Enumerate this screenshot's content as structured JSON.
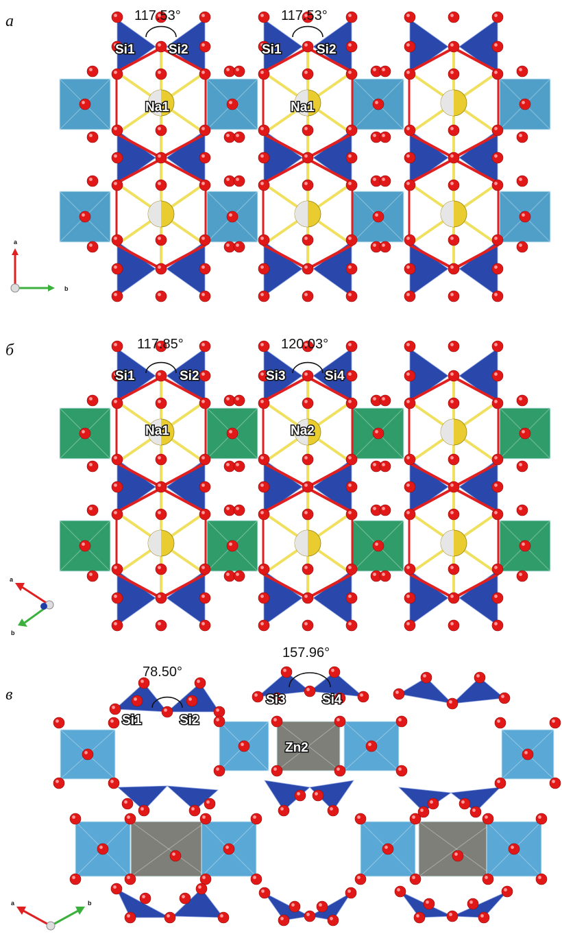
{
  "panels": [
    {
      "id": "a",
      "label": "а",
      "octa_color": "#4f9fc9",
      "has_na": true,
      "angles": [
        {
          "text": "117.53°",
          "left": "Si1",
          "right": "Si2",
          "center": "Na1"
        },
        {
          "text": "117.53°",
          "left": "Si1",
          "right": "Si2",
          "center": "Na1"
        }
      ],
      "axes": {
        "x": "b",
        "y": "a"
      }
    },
    {
      "id": "b",
      "label": "б",
      "octa_color": "#2f9c6a",
      "has_na": true,
      "angles": [
        {
          "text": "117.85°",
          "left": "Si1",
          "right": "Si2",
          "center": "Na1"
        },
        {
          "text": "120.03°",
          "left": "Si3",
          "right": "Si4",
          "center": "Na2"
        }
      ],
      "axes": {
        "x": "b",
        "y": "a"
      }
    },
    {
      "id": "c",
      "label": "в",
      "octa_color": "#5aa8d6",
      "zn_color": "#7d7f78",
      "has_na": false,
      "angles": [
        {
          "text": "78.50°",
          "left": "Si1",
          "right": "Si2"
        },
        {
          "text": "157.96°",
          "left": "Si3",
          "right": "Si4",
          "center": "Zn2"
        }
      ],
      "axes": {
        "x": "b",
        "y": "a"
      }
    }
  ],
  "colors": {
    "tetrahedron": "#1f3fa8",
    "oxygen": "#e01818",
    "sodium": "#e8cc30",
    "bond_red": "#e02020",
    "bond_yellow": "#f0e060"
  }
}
